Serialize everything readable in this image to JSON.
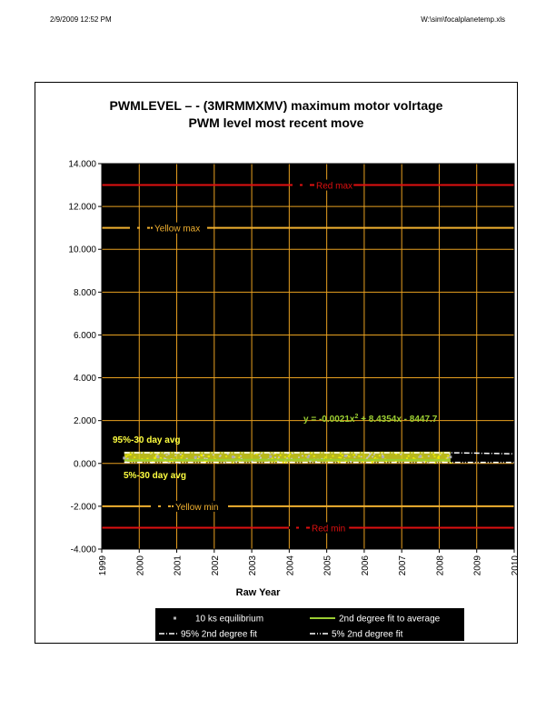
{
  "header": {
    "timestamp": "2/9/2009 12:52 PM",
    "file_path": "W:\\sim\\focalplanetemp.xls"
  },
  "colors": {
    "plot_bg": "#000000",
    "grid": "#e8a020",
    "red_limit": "#e01010",
    "yellow_limit": "#f0b030",
    "fit_average": "#9acd32",
    "data_band": "#d8d820",
    "text_yellow": "#ffff40"
  },
  "chart_data": {
    "type": "scatter",
    "title": "PWMLEVEL – - (3MRMMXMV) maximum motor volrtage",
    "subtitle": "PWM level most recent move",
    "xlabel": "Raw Year",
    "ylabel": "",
    "xlim": [
      1999,
      2010
    ],
    "ylim": [
      -4.0,
      14.0
    ],
    "x_ticks": [
      "1999",
      "2000",
      "2001",
      "2002",
      "2003",
      "2004",
      "2005",
      "2006",
      "2007",
      "2008",
      "2009",
      "2010"
    ],
    "y_ticks": [
      "14.000",
      "12.000",
      "10.000",
      "8.000",
      "6.000",
      "4.000",
      "2.000",
      "0.000",
      "-2.000",
      "-4.000"
    ],
    "grid": true,
    "limits": [
      {
        "label": "Red max",
        "value": 13.0,
        "color": "red"
      },
      {
        "label": "Yellow max",
        "value": 11.0,
        "color": "yellow"
      },
      {
        "label": "Yellow min",
        "value": -2.0,
        "color": "yellow"
      },
      {
        "label": "Red min",
        "value": -3.0,
        "color": "red"
      }
    ],
    "annotations": {
      "equation": "y = -0.0021x",
      "equation_sup": "2",
      "equation_rest": " + 8.4354x - 8447.7",
      "upper_band_label": "95%-30 day avg",
      "lower_band_label": "5%-30 day avg"
    },
    "series": [
      {
        "name": "10 ks equilibrium",
        "x": [
          1999.6,
          2000.5,
          2001.5,
          2002.5,
          2003.5,
          2004.5,
          2005.5,
          2006.5,
          2007.5,
          2008.3
        ],
        "y": [
          0.25,
          0.3,
          0.28,
          0.3,
          0.32,
          0.3,
          0.35,
          0.3,
          0.32,
          0.3
        ]
      },
      {
        "name": "2nd degree fit to average",
        "x": [
          1999.6,
          2001.0,
          2003.0,
          2005.0,
          2007.0,
          2008.3
        ],
        "y": [
          0.15,
          0.16,
          0.17,
          0.17,
          0.16,
          0.15
        ]
      },
      {
        "name": "95% 2nd degree fit",
        "x": [
          1999.6,
          2001.0,
          2003.0,
          2005.0,
          2007.0,
          2008.3,
          2010.0
        ],
        "y": [
          0.5,
          0.5,
          0.5,
          0.5,
          0.5,
          0.5,
          0.45
        ]
      },
      {
        "name": "5% 2nd degree fit",
        "x": [
          1999.6,
          2001.0,
          2003.0,
          2005.0,
          2007.0,
          2008.3,
          2010.0
        ],
        "y": [
          0.05,
          0.05,
          0.05,
          0.05,
          0.05,
          0.05,
          0.05
        ]
      }
    ],
    "legend_position": "bottom"
  }
}
